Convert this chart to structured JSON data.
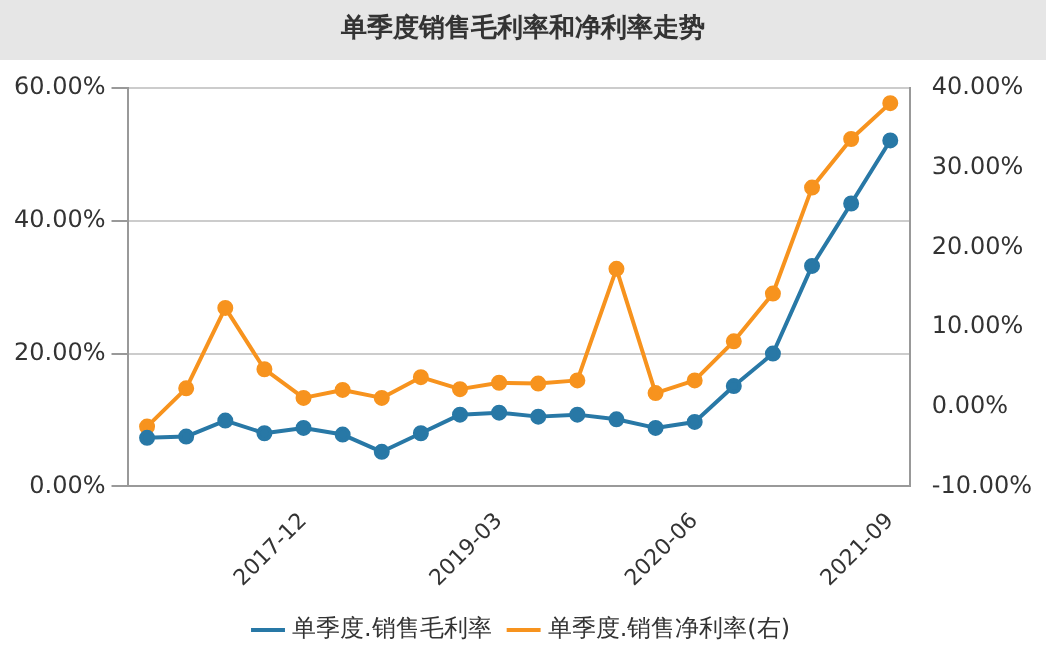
{
  "chart_data": {
    "type": "line",
    "title": "单季度销售毛利率和净利率走势",
    "categories": [
      null,
      null,
      null,
      null,
      "2017-12",
      null,
      null,
      null,
      null,
      "2019-03",
      null,
      null,
      null,
      null,
      "2020-06",
      null,
      null,
      null,
      null,
      "2021-09"
    ],
    "series": [
      {
        "name": "单季度.销售毛利率",
        "color": "#2878a6",
        "values": [
          7.3,
          7.5,
          9.9,
          8.0,
          8.8,
          7.8,
          5.2,
          8.0,
          10.8,
          11.1,
          10.5,
          10.8,
          10.1,
          8.8,
          9.7,
          15.1,
          20.0,
          33.2,
          42.6,
          52.1
        ]
      },
      {
        "name": "单季度.销售净利率(右)",
        "color": "#f7931e",
        "axis": "y2",
        "values": [
          -2.5,
          2.3,
          12.4,
          4.7,
          1.1,
          2.1,
          1.1,
          3.7,
          2.2,
          3.0,
          2.9,
          3.3,
          17.3,
          1.7,
          3.3,
          8.2,
          14.2,
          27.5,
          33.6,
          38.1
        ]
      }
    ],
    "ylim": [
      0,
      60
    ],
    "yticks": [
      {
        "value": 0,
        "label": "0.00%"
      },
      {
        "value": 20,
        "label": "20.00%"
      },
      {
        "value": 40,
        "label": "40.00%"
      },
      {
        "value": 60,
        "label": "60.00%"
      }
    ],
    "y2lim": [
      -10,
      40
    ],
    "y2ticks": [
      {
        "value": -10,
        "label": "-10.00%"
      },
      {
        "value": 0,
        "label": "0.00%"
      },
      {
        "value": 10,
        "label": "10.00%"
      },
      {
        "value": 20,
        "label": "20.00%"
      },
      {
        "value": 30,
        "label": "30.00%"
      },
      {
        "value": 40,
        "label": "40.00%"
      }
    ],
    "grid": "y",
    "legend": "bottom",
    "marker": "circle",
    "line_style": "solid"
  }
}
